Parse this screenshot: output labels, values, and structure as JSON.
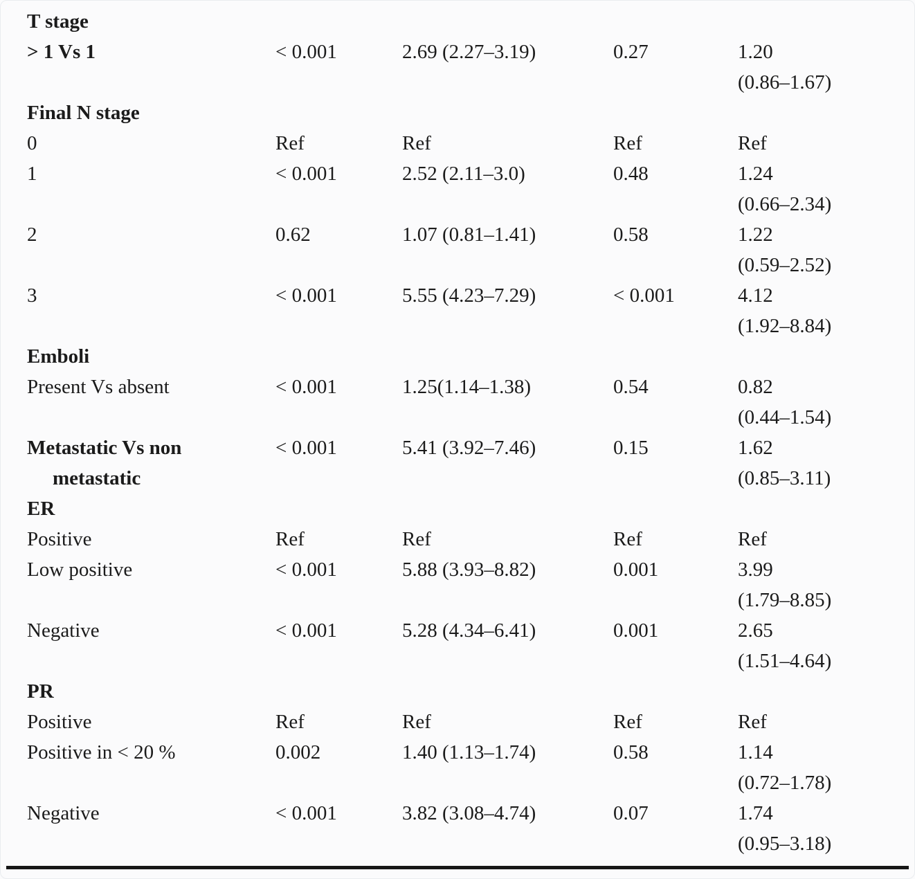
{
  "colors": {
    "text": "#1b1b1b",
    "rule": "#161616",
    "background": "#fbfbfc"
  },
  "table": {
    "rows": [
      {
        "header": true,
        "label": "T stage"
      },
      {
        "bold": true,
        "label": "> 1 Vs 1",
        "p1": "< 0.001",
        "hr1": "2.69 (2.27–3.19)",
        "p2": "0.27",
        "v2": "1.20",
        "ci2": "(0.86–1.67)"
      },
      {
        "header": true,
        "label": "Final N stage"
      },
      {
        "label": "0",
        "p1": "Ref",
        "hr1": "Ref",
        "p2": "Ref",
        "v2": "Ref"
      },
      {
        "label": "1",
        "p1": "< 0.001",
        "hr1": "2.52 (2.11–3.0)",
        "p2": "0.48",
        "v2": "1.24",
        "ci2": "(0.66–2.34)"
      },
      {
        "label": "2",
        "p1": "0.62",
        "hr1": "1.07 (0.81–1.41)",
        "p2": "0.58",
        "v2": "1.22",
        "ci2": "(0.59–2.52)"
      },
      {
        "label": "3",
        "p1": "< 0.001",
        "hr1": "5.55 (4.23–7.29)",
        "p2": "< 0.001",
        "v2": "4.12",
        "ci2": "(1.92–8.84)"
      },
      {
        "header": true,
        "label": "Emboli"
      },
      {
        "label": "Present Vs absent",
        "p1": "< 0.001",
        "hr1": "1.25(1.14–1.38)",
        "p2": "0.54",
        "v2": "0.82",
        "ci2": "(0.44–1.54)"
      },
      {
        "bold": true,
        "hang": true,
        "label": "Metastatic Vs non metastatic",
        "p1": "< 0.001",
        "hr1": "5.41 (3.92–7.46)",
        "p2": "0.15",
        "v2": "1.62",
        "ci2": "(0.85–3.11)"
      },
      {
        "header": true,
        "label": "ER"
      },
      {
        "label": "Positive",
        "p1": "Ref",
        "hr1": "Ref",
        "p2": "Ref",
        "v2": "Ref"
      },
      {
        "label": "Low positive",
        "p1": "< 0.001",
        "hr1": "5.88 (3.93–8.82)",
        "p2": "0.001",
        "v2": "3.99",
        "ci2": "(1.79–8.85)"
      },
      {
        "label": "Negative",
        "p1": "< 0.001",
        "hr1": "5.28 (4.34–6.41)",
        "p2": "0.001",
        "v2": "2.65",
        "ci2": "(1.51–4.64)"
      },
      {
        "header": true,
        "label": "PR"
      },
      {
        "label": "Positive",
        "p1": "Ref",
        "hr1": "Ref",
        "p2": "Ref",
        "v2": "Ref"
      },
      {
        "label": "Positive in < 20 %",
        "p1": "0.002",
        "hr1": "1.40 (1.13–1.74)",
        "p2": "0.58",
        "v2": "1.14",
        "ci2": "(0.72–1.78)"
      },
      {
        "label": "Negative",
        "p1": "< 0.001",
        "hr1": "3.82 (3.08–4.74)",
        "p2": "0.07",
        "v2": "1.74",
        "ci2": "(0.95–3.18)"
      }
    ]
  }
}
